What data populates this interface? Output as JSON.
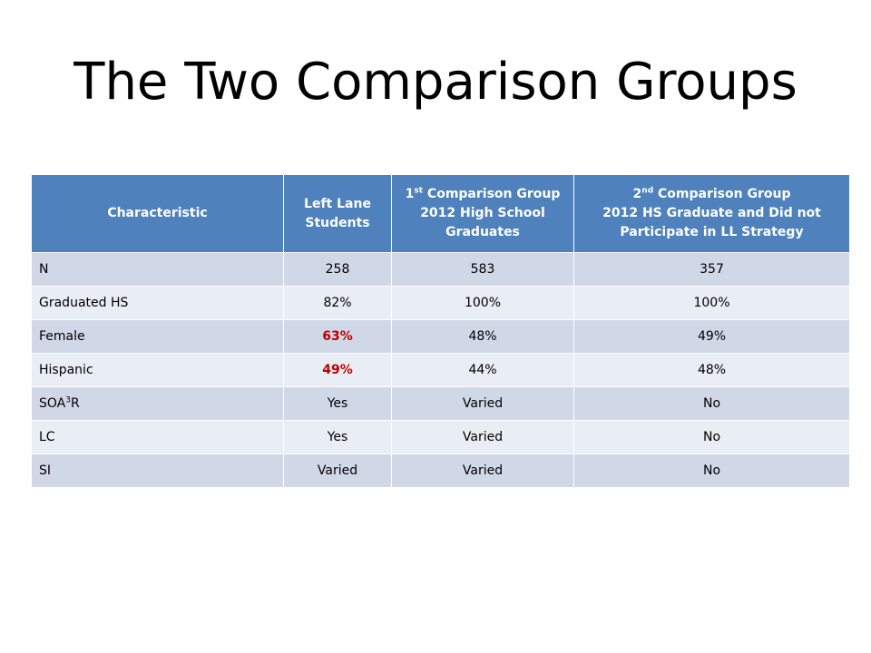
{
  "slide": {
    "title": "The Two Comparison Groups"
  },
  "table": {
    "headers": {
      "col1": "Characteristic",
      "col2_line1": "Left Lane",
      "col2_line2": "Students",
      "col3_num": "1",
      "col3_sup": "st",
      "col3_line1_rest": " Comparison Group",
      "col3_line2": "2012 High School Graduates",
      "col4_num": "2",
      "col4_sup": "nd",
      "col4_line1_rest": " Comparison Group",
      "col4_line2": "2012 HS Graduate and Did not Participate in LL Strategy"
    },
    "rows": [
      {
        "label": "N",
        "left_lane": "258",
        "group1": "583",
        "group2": "357"
      },
      {
        "label": "Graduated HS",
        "left_lane": "82%",
        "group1": "100%",
        "group2": "100%"
      },
      {
        "label": "Female",
        "left_lane": "63%",
        "group1": "48%",
        "group2": "49%"
      },
      {
        "label": "Hispanic",
        "left_lane": "49%",
        "group1": "44%",
        "group2": "48%"
      },
      {
        "label_pre": "SOA",
        "label_sup": "3",
        "label_post": "R",
        "left_lane": "Yes",
        "group1": "Varied",
        "group2": "No"
      },
      {
        "label": "LC",
        "left_lane": "Yes",
        "group1": "Varied",
        "group2": "No"
      },
      {
        "label": "SI",
        "left_lane": "Varied",
        "group1": "Varied",
        "group2": "No"
      }
    ],
    "highlight_color": "#c00000",
    "header_color": "#4f81bd"
  }
}
